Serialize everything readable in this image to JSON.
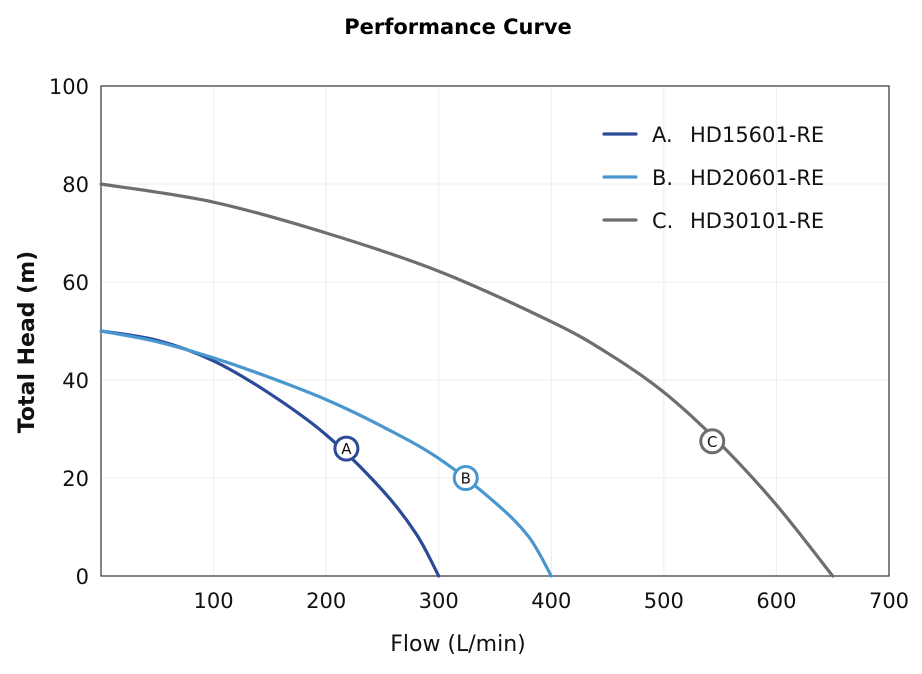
{
  "chart_data": {
    "type": "line",
    "title": "Performance Curve",
    "xlabel": "Flow (L/min)",
    "ylabel": "Total Head (m)",
    "xlim": [
      0,
      700
    ],
    "ylim": [
      0,
      100
    ],
    "xticks": [
      "100",
      "200",
      "300",
      "400",
      "500",
      "600",
      "700"
    ],
    "yticks": [
      "0",
      "20",
      "40",
      "60",
      "80",
      "100"
    ],
    "grid": true,
    "legend_position": "top-right",
    "series": [
      {
        "name": "HD15601-RE",
        "legend_prefix": "A.",
        "marker_label": "A",
        "marker_point": [
          218,
          26
        ],
        "color": "#2b4a97",
        "x": [
          0,
          50,
          100,
          150,
          200,
          250,
          280,
          300
        ],
        "y": [
          50,
          48.1,
          43.9,
          37.2,
          28.8,
          17.5,
          8.6,
          0
        ]
      },
      {
        "name": "HD20601-RE",
        "legend_prefix": "B.",
        "marker_label": "B",
        "marker_point": [
          324,
          20
        ],
        "color": "#4a97d0",
        "x": [
          0,
          50,
          100,
          150,
          200,
          250,
          300,
          350,
          380,
          400
        ],
        "y": [
          50,
          47.8,
          44.5,
          40.5,
          36,
          30.5,
          24,
          15,
          8,
          0
        ]
      },
      {
        "name": "HD30101-RE",
        "legend_prefix": "C.",
        "marker_label": "C",
        "marker_point": [
          543,
          27.5
        ],
        "color": "#6e6e6e",
        "x": [
          0,
          100,
          200,
          300,
          400,
          450,
          500,
          550,
          600,
          650
        ],
        "y": [
          80,
          76.3,
          70,
          62.2,
          51.9,
          45.5,
          37.5,
          27,
          14.5,
          0
        ]
      }
    ]
  }
}
